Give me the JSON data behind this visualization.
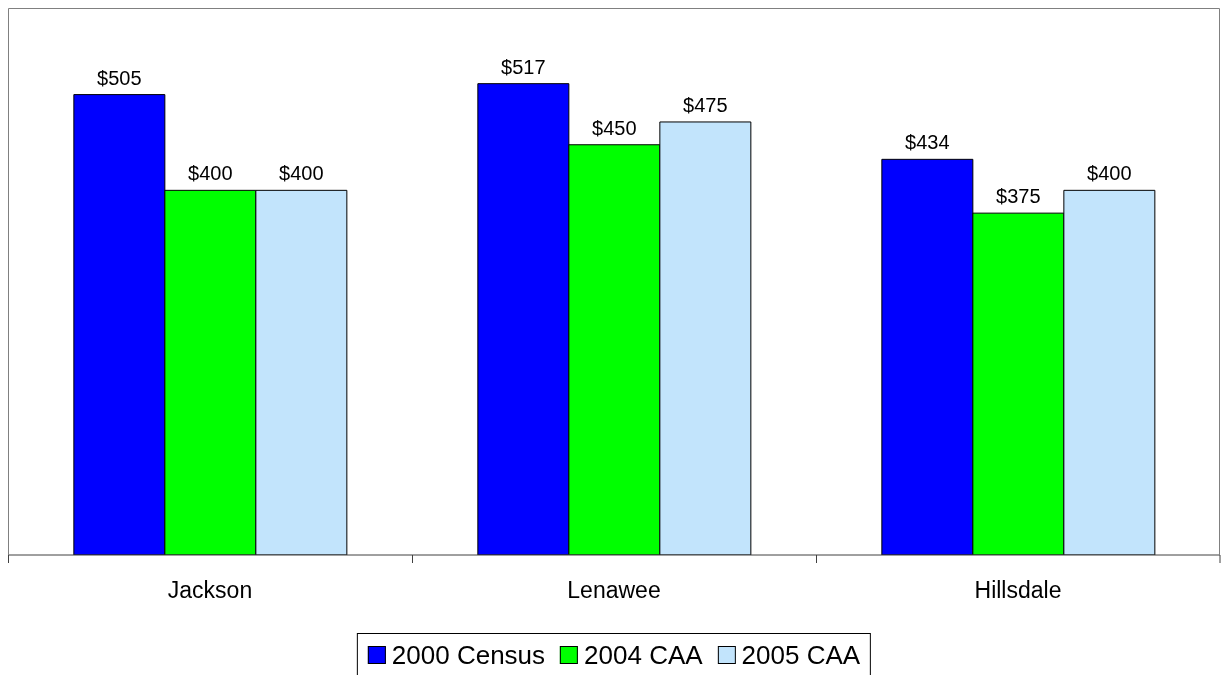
{
  "chart_data": {
    "type": "bar",
    "categories": [
      "Jackson",
      "Lenawee",
      "Hillsdale"
    ],
    "series": [
      {
        "name": "2000 Census",
        "color": "#0000ff",
        "values": [
          505,
          517,
          434
        ],
        "value_labels": [
          "$505",
          "$517",
          "$434"
        ]
      },
      {
        "name": "2004 CAA",
        "color": "#00ff00",
        "values": [
          400,
          450,
          375
        ],
        "value_labels": [
          "$400",
          "$450",
          "$375"
        ]
      },
      {
        "name": "2005 CAA",
        "color": "#c2e4fc",
        "values": [
          400,
          475,
          400
        ],
        "value_labels": [
          "$400",
          "$475",
          "$400"
        ]
      }
    ],
    "ylim": [
      0,
      600
    ],
    "tick_labels": "x",
    "legend": "bottom"
  }
}
